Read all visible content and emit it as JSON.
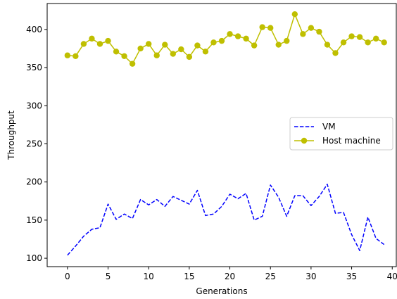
{
  "chart_data": {
    "type": "line",
    "xlabel": "Generations",
    "ylabel": "Throughput",
    "xlim": [
      -2.5,
      40.5
    ],
    "ylim": [
      89,
      434
    ],
    "xticks": [
      0,
      5,
      10,
      15,
      20,
      25,
      30,
      35,
      40
    ],
    "yticks": [
      100,
      150,
      200,
      250,
      300,
      350,
      400
    ],
    "grid": false,
    "legend_position": "center-right",
    "x": [
      0,
      1,
      2,
      3,
      4,
      5,
      6,
      7,
      8,
      9,
      10,
      11,
      12,
      13,
      14,
      15,
      16,
      17,
      18,
      19,
      20,
      21,
      22,
      23,
      24,
      25,
      26,
      27,
      28,
      29,
      30,
      31,
      32,
      33,
      34,
      35,
      36,
      37,
      38,
      39
    ],
    "series": [
      {
        "name": "VM",
        "color": "#0000ff",
        "style": "dashed",
        "marker": "none",
        "values": [
          104,
          116,
          129,
          138,
          140,
          171,
          151,
          158,
          152,
          177,
          170,
          177,
          168,
          181,
          176,
          171,
          189,
          156,
          158,
          168,
          184,
          178,
          185,
          150,
          155,
          196,
          180,
          155,
          182,
          182,
          169,
          181,
          197,
          159,
          160,
          131,
          110,
          154,
          126,
          118
        ]
      },
      {
        "name": "Host machine",
        "color": "#bfbf00",
        "style": "solid",
        "marker": "circle",
        "values": [
          366,
          365,
          381,
          388,
          381,
          385,
          371,
          365,
          355,
          375,
          381,
          366,
          380,
          368,
          374,
          364,
          379,
          371,
          383,
          385,
          394,
          391,
          388,
          379,
          403,
          402,
          380,
          385,
          420,
          394,
          402,
          397,
          380,
          369,
          383,
          391,
          390,
          383,
          388,
          383
        ]
      }
    ]
  }
}
